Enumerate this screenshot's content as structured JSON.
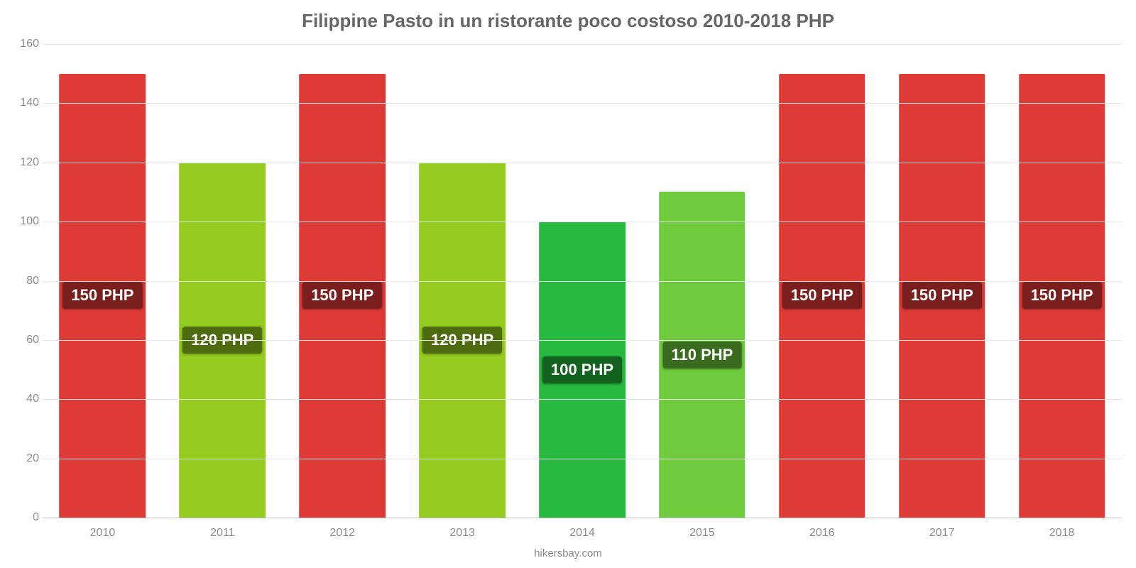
{
  "chart": {
    "type": "bar",
    "title": "Filippine Pasto in un ristorante poco costoso 2010-2018 PHP",
    "title_fontsize": 26,
    "title_color": "#666666",
    "background_color": "#ffffff",
    "grid_color": "#e6e6e6",
    "axis_line_color": "#bdbdbd",
    "tick_label_color": "#8a8a8a",
    "tick_fontsize": 16,
    "credit": "hikersbay.com",
    "y": {
      "min": 0,
      "max": 160,
      "tick_step": 20,
      "ticks": [
        0,
        20,
        40,
        60,
        80,
        100,
        120,
        140,
        160
      ]
    },
    "bar_width_pct": 72,
    "bar_label_fontsize": 22,
    "bar_label_text_color": "#ffffff",
    "categories": [
      "2010",
      "2011",
      "2012",
      "2013",
      "2014",
      "2015",
      "2016",
      "2017",
      "2018"
    ],
    "values": [
      150,
      120,
      150,
      120,
      100,
      110,
      150,
      150,
      150
    ],
    "value_labels": [
      "150 PHP",
      "120 PHP",
      "150 PHP",
      "120 PHP",
      "100 PHP",
      "110 PHP",
      "150 PHP",
      "150 PHP",
      "150 PHP"
    ],
    "bar_colors": [
      "#de3a36",
      "#94cc1f",
      "#de3a36",
      "#94cc1f",
      "#27b93f",
      "#6fcb3d",
      "#de3a36",
      "#de3a36",
      "#de3a36"
    ],
    "bar_label_bg": [
      "#7a1f1d",
      "#4f6b10",
      "#7a1f1d",
      "#4f6b10",
      "#14621f",
      "#3b6b1f",
      "#7a1f1d",
      "#7a1f1d",
      "#7a1f1d"
    ]
  }
}
